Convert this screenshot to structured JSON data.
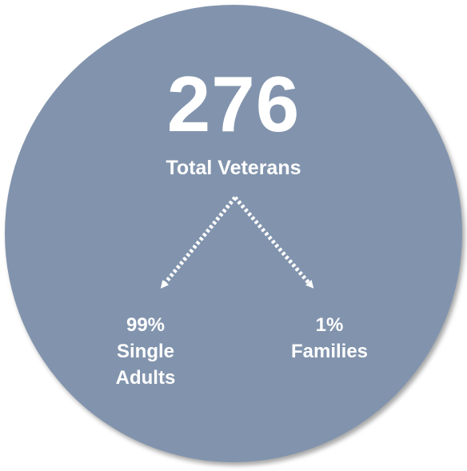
{
  "total": {
    "value": "276",
    "label": "Total Veterans"
  },
  "branches": [
    {
      "percent": "99%",
      "line1": "Single",
      "line2": "Adults"
    },
    {
      "percent": "1%",
      "line1": "Families",
      "line2": ""
    }
  ],
  "colors": {
    "circle": "#8294ad",
    "text": "#ffffff"
  }
}
